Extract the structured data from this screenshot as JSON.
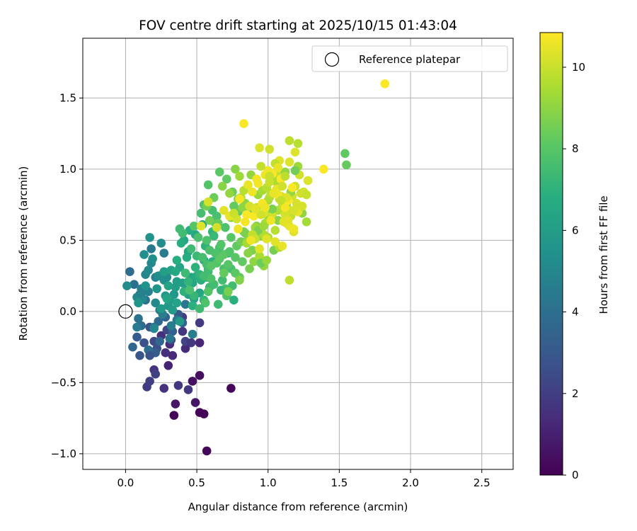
{
  "chart_data": {
    "type": "scatter",
    "title": "FOV centre drift starting at 2025/10/15 01:43:04",
    "xlabel": "Angular distance from reference (arcmin)",
    "ylabel": "Rotation from reference (arcmin)",
    "xlim": [
      -0.3,
      2.72
    ],
    "ylim": [
      -1.11,
      1.92
    ],
    "xticks": [
      0.0,
      0.5,
      1.0,
      1.5,
      2.0,
      2.5
    ],
    "xtick_labels": [
      "0.0",
      "0.5",
      "1.0",
      "1.5",
      "2.0",
      "2.5"
    ],
    "yticks": [
      -1.0,
      -0.5,
      0.0,
      0.5,
      1.0,
      1.5
    ],
    "ytick_labels": [
      "−1.0",
      "−0.5",
      "0.0",
      "0.5",
      "1.0",
      "1.5"
    ],
    "grid": true,
    "legend": {
      "placement": "top-right",
      "label": "Reference platepar"
    },
    "reference_point": {
      "x": 0.0,
      "y": 0.0
    },
    "colorbar": {
      "label": "Hours from first FF file",
      "range": [
        0,
        10.85
      ],
      "ticks": [
        0,
        2,
        4,
        6,
        8,
        10
      ],
      "tick_labels": [
        "0",
        "2",
        "4",
        "6",
        "8",
        "10"
      ],
      "colormap": "viridis"
    },
    "series": [
      {
        "name": "FOV centre drift",
        "x": [
          0.34,
          0.52,
          0.55,
          0.57,
          0.74,
          0.35,
          0.49,
          0.47,
          0.52,
          0.27,
          0.3,
          0.52,
          0.33,
          0.42,
          0.31,
          0.28,
          0.25,
          0.2,
          0.37,
          0.44,
          0.4,
          0.52,
          0.15,
          0.17,
          0.4,
          0.21,
          0.42,
          0.29,
          0.2,
          0.32,
          0.22,
          0.13,
          0.17,
          0.1,
          0.37,
          0.08,
          0.21,
          0.33,
          0.28,
          0.4,
          0.24,
          0.05,
          0.23,
          0.11,
          0.16,
          0.03,
          0.06,
          0.14,
          0.1,
          0.09,
          0.2,
          0.31,
          0.42,
          0.36,
          0.24,
          0.18,
          0.27,
          0.08,
          0.32,
          0.47,
          0.16,
          0.21,
          0.11,
          0.26,
          0.14,
          0.08,
          0.18,
          0.12,
          0.21,
          0.16,
          0.25,
          0.01,
          0.23,
          0.19,
          0.27,
          0.13,
          0.17,
          0.14,
          0.09,
          0.22,
          0.34,
          0.3,
          0.2,
          0.26,
          0.38,
          0.25,
          0.17,
          0.11,
          0.29,
          0.46,
          0.33,
          0.31,
          0.42,
          0.36,
          0.28,
          0.35,
          0.48,
          0.27,
          0.4,
          0.44,
          0.32,
          0.36,
          0.3,
          0.46,
          0.38,
          0.52,
          0.29,
          0.47,
          0.55,
          0.44,
          0.41,
          0.49,
          0.54,
          0.35,
          0.5,
          0.58,
          0.43,
          0.39,
          0.45,
          0.36,
          0.53,
          0.47,
          0.61,
          0.41,
          0.49,
          0.56,
          0.52,
          0.44,
          0.6,
          0.48,
          0.57,
          0.55,
          0.64,
          0.59,
          0.5,
          0.38,
          0.42,
          0.46,
          0.4,
          0.58,
          0.62,
          0.54,
          0.66,
          0.57,
          0.51,
          0.45,
          0.69,
          0.63,
          0.56,
          0.6,
          0.52,
          0.58,
          0.64,
          0.67,
          0.55,
          0.61,
          0.7,
          0.48,
          0.65,
          0.53,
          0.72,
          0.6,
          0.57,
          0.68,
          0.63,
          0.74,
          0.59,
          0.66,
          0.71,
          0.62,
          0.77,
          0.55,
          0.69,
          0.75,
          0.64,
          0.72,
          0.67,
          0.78,
          0.61,
          0.74,
          0.8,
          0.7,
          0.58,
          0.76,
          0.82,
          0.65,
          0.73,
          0.79,
          0.69,
          0.84,
          0.62,
          0.77,
          0.75,
          0.81,
          0.57,
          0.59,
          0.72,
          0.87,
          0.66,
          0.79,
          0.83,
          0.74,
          0.89,
          0.71,
          0.86,
          0.8,
          0.92,
          0.77,
          0.84,
          0.68,
          0.9,
          0.95,
          0.82,
          0.88,
          0.73,
          0.97,
          0.93,
          0.86,
          0.99,
          0.8,
          0.91,
          1.02,
          0.96,
          0.85,
          1.0,
          0.98,
          1.04,
          0.94,
          1.07,
          1.01,
          0.97,
          1.1,
          1.05,
          0.99,
          1.13,
          1.08,
          1.02,
          1.16,
          1.11,
          1.06,
          1.19,
          1.14,
          1.09,
          1.03,
          1.22,
          1.17,
          1.12,
          1.25,
          1.2,
          1.15,
          1.28,
          0.76,
          0.87,
          0.93,
          1.07,
          1.16,
          1.21,
          1.0,
          0.81,
          0.89,
          1.1,
          1.18,
          0.95,
          1.04,
          1.13,
          1.24,
          0.99,
          1.27,
          1.08,
          1.15,
          0.91,
          0.78,
          1.19,
          1.03,
          0.86,
          1.12,
          0.97,
          1.06,
          0.83,
          0.92,
          1.01,
          1.54,
          1.55,
          0.94,
          0.99,
          1.05,
          1.1,
          1.15,
          1.21,
          0.88,
          1.18,
          1.02,
          0.96,
          1.12,
          1.07,
          0.9,
          1.17,
          1.14,
          0.85,
          1.09,
          0.93,
          0.98,
          1.04,
          1.08,
          1.13,
          1.18,
          1.23,
          1.27,
          1.39,
          1.03,
          0.92,
          1.0,
          1.06,
          1.11,
          0.97,
          0.87,
          0.95,
          1.01,
          1.09,
          1.15,
          1.21,
          0.89,
          0.86,
          0.91,
          0.94,
          0.83,
          0.8,
          0.79,
          0.73,
          0.69,
          0.53,
          0.58,
          0.64,
          0.76,
          1.05,
          1.12,
          0.84,
          0.98,
          1.07,
          1.14,
          1.19,
          1.24,
          1.1,
          1.01,
          0.95,
          1.82
        ],
        "y": [
          -0.73,
          -0.71,
          -0.72,
          -0.98,
          -0.54,
          -0.65,
          -0.64,
          -0.49,
          -0.45,
          -0.54,
          -0.38,
          -0.22,
          -0.31,
          -0.26,
          -0.23,
          -0.29,
          -0.17,
          -0.41,
          -0.52,
          -0.55,
          -0.14,
          -0.08,
          -0.53,
          -0.49,
          -0.04,
          -0.44,
          -0.21,
          -0.13,
          -0.21,
          -0.2,
          -0.26,
          -0.22,
          -0.11,
          -0.31,
          -0.02,
          -0.18,
          -0.29,
          -0.14,
          -0.04,
          -0.08,
          -0.21,
          -0.25,
          -0.07,
          -0.1,
          -0.27,
          0.28,
          0.19,
          0.08,
          0.12,
          -0.05,
          -0.11,
          -0.19,
          0.05,
          -0.06,
          0.01,
          0.44,
          0.41,
          -0.11,
          -0.1,
          -0.16,
          0.14,
          0.24,
          0.16,
          0.26,
          0.26,
          0.1,
          0.34,
          0.09,
          0.06,
          0.29,
          0.48,
          0.18,
          0.25,
          0.37,
          0.22,
          0.4,
          0.52,
          0.18,
          0.06,
          0.16,
          0.12,
          0.04,
          -0.12,
          -0.02,
          -0.07,
          0.02,
          -0.31,
          0.13,
          0.24,
          -0.22,
          0.01,
          0.08,
          0.15,
          0.21,
          0.11,
          0.17,
          0.09,
          0.28,
          0.2,
          0.12,
          0.29,
          0.06,
          0.18,
          0.24,
          0.31,
          0.13,
          0.09,
          0.2,
          0.36,
          0.42,
          0.5,
          0.54,
          0.61,
          0.28,
          0.25,
          0.3,
          0.38,
          0.48,
          0.57,
          0.36,
          0.22,
          0.04,
          0.35,
          0.14,
          0.31,
          0.46,
          0.26,
          0.21,
          0.32,
          0.11,
          0.24,
          0.08,
          0.4,
          0.17,
          0.39,
          0.58,
          0.27,
          0.44,
          0.55,
          0.28,
          0.19,
          0.38,
          0.45,
          0.33,
          0.52,
          0.15,
          0.3,
          0.41,
          0.06,
          0.23,
          0.02,
          0.14,
          0.34,
          0.47,
          0.25,
          0.56,
          0.16,
          0.6,
          0.05,
          0.69,
          0.41,
          0.32,
          0.5,
          0.22,
          0.62,
          0.3,
          0.43,
          0.37,
          0.11,
          0.53,
          0.27,
          0.75,
          0.4,
          0.18,
          0.67,
          0.33,
          0.15,
          0.46,
          0.71,
          0.52,
          0.24,
          0.59,
          0.89,
          0.08,
          0.35,
          0.62,
          0.42,
          0.7,
          0.27,
          0.55,
          0.8,
          0.38,
          0.84,
          0.49,
          0.74,
          0.64,
          0.14,
          0.3,
          0.98,
          0.79,
          0.56,
          0.66,
          0.43,
          0.93,
          0.51,
          0.22,
          0.6,
          1.0,
          0.76,
          0.88,
          0.35,
          0.53,
          0.73,
          0.96,
          0.83,
          0.32,
          0.82,
          0.49,
          0.68,
          0.95,
          0.59,
          0.7,
          0.85,
          0.48,
          0.78,
          0.62,
          0.92,
          0.39,
          0.71,
          0.8,
          0.54,
          0.74,
          0.57,
          0.87,
          0.62,
          0.79,
          0.83,
          0.67,
          0.75,
          0.97,
          0.88,
          0.72,
          0.81,
          0.67,
          0.96,
          0.81,
          0.68,
          0.84,
          0.76,
          1.05,
          0.92,
          0.74,
          0.7,
          0.57,
          0.64,
          0.84,
          1.02,
          0.52,
          0.8,
          0.54,
          0.79,
          0.56,
          0.34,
          0.43,
          0.76,
          0.69,
          0.36,
          0.63,
          0.45,
          0.22,
          0.51,
          0.65,
          0.99,
          0.72,
          0.41,
          0.98,
          0.6,
          0.91,
          0.85,
          0.73,
          1.14,
          1.11,
          1.03,
          0.44,
          0.51,
          0.49,
          0.46,
          0.6,
          0.7,
          0.5,
          0.58,
          0.64,
          0.76,
          0.73,
          0.82,
          0.67,
          0.87,
          0.78,
          0.68,
          0.93,
          0.9,
          0.96,
          0.83,
          1.06,
          0.8,
          0.71,
          0.83,
          0.82,
          1.0,
          0.97,
          0.93,
          0.99,
          0.86,
          0.63,
          0.69,
          0.74,
          0.68,
          0.91,
          0.78,
          1.2,
          1.18,
          0.84,
          0.89,
          0.72,
          1.15,
          1.32,
          0.79,
          0.58,
          0.67,
          0.71,
          0.6,
          0.77,
          0.59,
          0.69,
          1.04,
          0.95,
          0.63,
          0.73,
          1.01,
          0.64,
          1.12,
          0.74,
          0.88,
          0.95,
          1.02,
          1.6
        ],
        "hours": [
          0.1,
          0.1,
          0.1,
          0.2,
          0.2,
          0.7,
          0.6,
          0.5,
          0.4,
          1.6,
          1.1,
          1.2,
          1.3,
          1.3,
          1.4,
          1.5,
          1.5,
          1.6,
          1.7,
          1.8,
          1.8,
          1.9,
          1.9,
          2.0,
          2.0,
          2.1,
          2.2,
          2.3,
          2.4,
          2.5,
          2.6,
          2.7,
          2.8,
          2.9,
          3.0,
          3.1,
          3.2,
          3.3,
          3.4,
          3.5,
          3.6,
          3.6,
          3.7,
          3.8,
          3.9,
          3.9,
          4.0,
          4.0,
          4.1,
          4.1,
          4.2,
          4.2,
          4.3,
          4.3,
          4.4,
          4.4,
          4.5,
          4.5,
          4.6,
          4.6,
          4.7,
          4.7,
          4.8,
          4.8,
          4.9,
          4.9,
          5.0,
          5.0,
          5.1,
          5.1,
          5.2,
          5.2,
          5.3,
          5.3,
          5.4,
          5.4,
          5.5,
          5.5,
          5.6,
          5.6,
          5.7,
          5.7,
          5.0,
          4.6,
          5.8,
          5.8,
          2.8,
          4.7,
          5.2,
          1.8,
          5.9,
          5.9,
          6.0,
          6.0,
          5.8,
          6.0,
          6.1,
          6.1,
          6.1,
          6.2,
          6.2,
          6.2,
          6.3,
          6.3,
          6.3,
          6.4,
          6.4,
          6.4,
          6.5,
          6.5,
          6.5,
          6.6,
          6.6,
          6.6,
          6.7,
          6.7,
          6.7,
          6.8,
          6.8,
          6.8,
          6.9,
          6.9,
          6.9,
          7.0,
          7.0,
          7.0,
          7.1,
          7.1,
          7.1,
          7.2,
          7.2,
          7.2,
          7.3,
          7.3,
          7.3,
          7.4,
          7.4,
          7.4,
          7.5,
          7.5,
          7.5,
          7.6,
          7.6,
          7.6,
          7.7,
          7.7,
          7.7,
          7.8,
          7.8,
          7.8,
          7.4,
          7.9,
          7.9,
          7.9,
          7.5,
          7.1,
          7.6,
          8.0,
          7.4,
          7.6,
          7.2,
          8.0,
          7.8,
          7.5,
          8.0,
          7.6,
          7.7,
          8.1,
          7.9,
          7.3,
          8.1,
          7.8,
          8.1,
          7.5,
          7.7,
          8.0,
          7.2,
          8.2,
          7.6,
          8.0,
          8.2,
          7.8,
          7.9,
          6.9,
          8.2,
          8.3,
          7.9,
          8.3,
          8.3,
          8.4,
          8.4,
          8.0,
          8.4,
          8.5,
          8.5,
          8.5,
          8.6,
          8.6,
          8.1,
          8.6,
          8.7,
          8.7,
          8.7,
          8.2,
          8.8,
          8.8,
          8.8,
          8.9,
          8.9,
          8.9,
          9.0,
          9.0,
          9.0,
          9.1,
          9.1,
          9.1,
          9.2,
          9.2,
          9.2,
          9.3,
          9.3,
          9.3,
          9.4,
          9.4,
          9.4,
          9.5,
          9.5,
          9.5,
          9.6,
          9.6,
          9.6,
          9.7,
          9.7,
          9.7,
          9.8,
          9.8,
          9.8,
          9.9,
          9.9,
          9.9,
          10.0,
          10.0,
          10.0,
          10.1,
          10.1,
          10.1,
          10.2,
          10.2,
          10.2,
          10.3,
          10.3,
          8.3,
          8.5,
          8.7,
          8.9,
          9.1,
          9.3,
          9.5,
          9.7,
          9.9,
          10.1,
          10.3,
          8.4,
          8.6,
          8.8,
          9.0,
          9.2,
          9.4,
          9.6,
          9.8,
          10.0,
          10.2,
          8.5,
          8.7,
          8.9,
          9.1,
          9.3,
          9.5,
          9.7,
          9.9,
          10.1,
          8.2,
          8.3,
          10.4,
          10.4,
          10.4,
          10.5,
          10.5,
          10.5,
          10.6,
          10.6,
          10.6,
          10.7,
          10.7,
          10.7,
          10.8,
          10.8,
          10.8,
          10.8,
          10.8,
          10.7,
          10.6,
          10.5,
          10.4,
          10.3,
          10.2,
          10.1,
          10.0,
          10.8,
          10.8,
          10.7,
          10.6,
          10.5,
          10.4,
          10.3,
          10.2,
          10.1,
          10.0,
          9.9,
          9.8,
          9.7,
          10.6,
          10.5,
          10.4,
          10.3,
          10.8,
          10.7,
          10.6,
          10.5,
          10.4,
          10.3,
          10.2,
          10.1,
          10.0,
          9.9,
          9.8,
          10.7,
          10.6,
          10.5,
          10.4,
          10.3,
          10.2,
          10.1,
          10.0,
          9.9,
          10.8
        ]
      }
    ]
  }
}
